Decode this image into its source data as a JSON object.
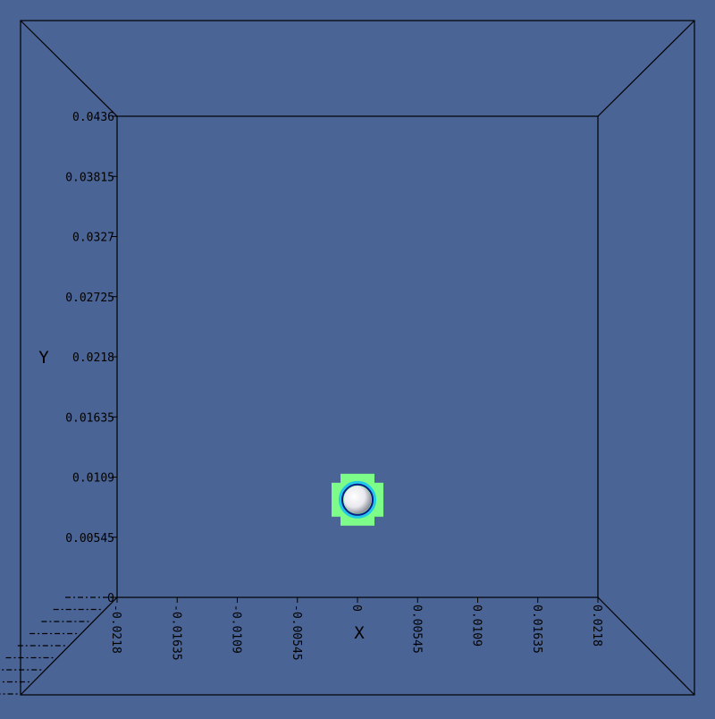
{
  "colors": {
    "background": "#4a6496",
    "frame": "#000000",
    "glow_outer": "#7dfc8a",
    "glow_inner": "#22c8e8",
    "ring": "#0a1a8a",
    "sphere": "#e8e8ee"
  },
  "chart_data": {
    "type": "scatter",
    "title": "",
    "xlabel": "X",
    "ylabel": "Y",
    "xlim": [
      -0.0218,
      0.0218
    ],
    "ylim": [
      0,
      0.0436
    ],
    "x_ticks": [
      "-0.0218",
      "-0.01635",
      "-0.0109",
      "-0.00545",
      "0",
      "0.00545",
      "0.0109",
      "0.01635",
      "0.0218"
    ],
    "y_ticks": [
      "0",
      "0.00545",
      "0.0109",
      "0.01635",
      "0.0218",
      "0.02725",
      "0.0327",
      "0.03815",
      "0.0436"
    ],
    "grid": false,
    "points": [
      {
        "x": 0.0,
        "y": 0.00885
      }
    ]
  }
}
